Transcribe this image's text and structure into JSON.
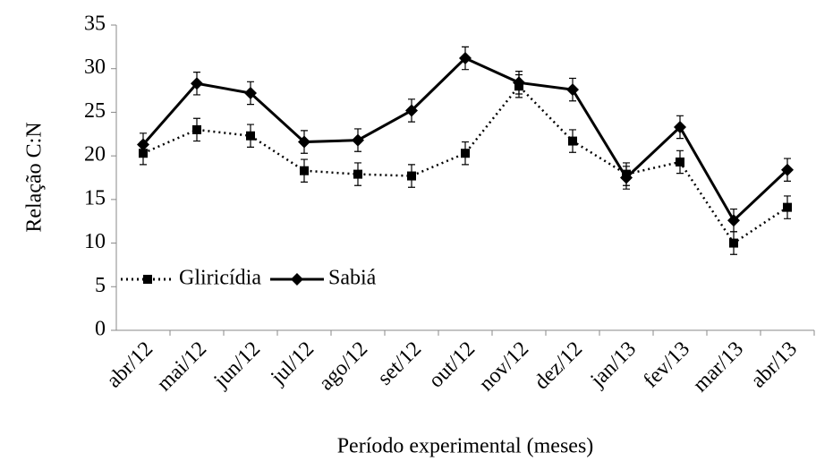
{
  "chart_data": {
    "type": "line",
    "y_label": "Relação C:N",
    "x_label": "Período experimental (meses)",
    "categories": [
      "abr/12",
      "mai/12",
      "jun/12",
      "jul/12",
      "ago/12",
      "set/12",
      "out/12",
      "nov/12",
      "dez/12",
      "jan/13",
      "fev/13",
      "mar/13",
      "abr/13"
    ],
    "series": [
      {
        "name": "Gliricídia",
        "color": "#000000",
        "linestyle": "dotted",
        "marker": "square",
        "values": [
          20.3,
          23.0,
          22.3,
          18.3,
          17.9,
          17.7,
          20.3,
          28.0,
          21.7,
          17.9,
          19.3,
          10.0,
          14.1
        ],
        "errors": [
          1.3,
          1.3,
          1.3,
          1.3,
          1.3,
          1.3,
          1.3,
          1.3,
          1.3,
          1.3,
          1.3,
          1.3,
          1.3
        ]
      },
      {
        "name": "Sabiá",
        "color": "#000000",
        "linestyle": "solid",
        "marker": "diamond",
        "values": [
          21.3,
          28.3,
          27.2,
          21.6,
          21.8,
          25.2,
          31.2,
          28.4,
          27.6,
          17.5,
          23.3,
          12.6,
          18.4
        ],
        "errors": [
          1.3,
          1.3,
          1.3,
          1.3,
          1.3,
          1.3,
          1.3,
          1.3,
          1.3,
          1.3,
          1.3,
          1.3,
          1.3
        ]
      }
    ],
    "ylim": [
      0,
      35
    ],
    "yticks": [
      0,
      5,
      10,
      15,
      20,
      25,
      30,
      35
    ],
    "grid": false,
    "legend": "lower left"
  }
}
